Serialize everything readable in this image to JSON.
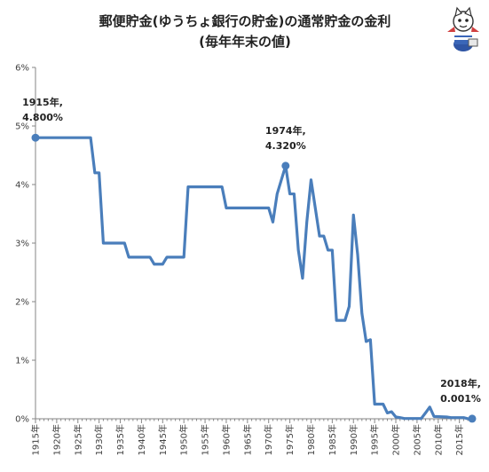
{
  "chart_data": {
    "type": "line",
    "title": "郵便貯金(ゆうちょ銀行の貯金)の通常貯金の金利",
    "subtitle": "(毎年年末の値)",
    "xlabel": "",
    "ylabel": "",
    "xlim": [
      1915,
      2018
    ],
    "ylim": [
      0,
      6
    ],
    "grid": false,
    "legend": "none",
    "line_color": "#4a7ebb",
    "y_ticks": [
      "0%",
      "1%",
      "2%",
      "3%",
      "4%",
      "5%",
      "6%"
    ],
    "x_ticks": [
      "1915年",
      "1920年",
      "1925年",
      "1930年",
      "1935年",
      "1940年",
      "1945年",
      "1950年",
      "1955年",
      "1960年",
      "1965年",
      "1970年",
      "1975年",
      "1980年",
      "1985年",
      "1990年",
      "1995年",
      "2000年",
      "2005年",
      "2010年",
      "2015年"
    ],
    "series": [
      {
        "x": [
          1915,
          1928,
          1929,
          1930,
          1931,
          1936,
          1937,
          1942,
          1943,
          1945,
          1946,
          1950,
          1951,
          1959,
          1960,
          1970,
          1971,
          1972,
          1973,
          1974,
          1975,
          1976,
          1977,
          1978,
          1979,
          1980,
          1981,
          1982,
          1983,
          1984,
          1985,
          1986,
          1987,
          1988,
          1989,
          1990,
          1991,
          1992,
          1993,
          1994,
          1995,
          1996,
          1997,
          1998,
          1999,
          2000,
          2001,
          2002,
          2006,
          2007,
          2008,
          2009,
          2012,
          2013,
          2016,
          2017,
          2018
        ],
        "y": [
          4.8,
          4.8,
          4.2,
          4.2,
          3.0,
          3.0,
          2.76,
          2.76,
          2.64,
          2.64,
          2.76,
          2.76,
          3.96,
          3.96,
          3.6,
          3.6,
          3.36,
          3.84,
          4.08,
          4.32,
          3.84,
          3.84,
          2.88,
          2.4,
          3.36,
          4.08,
          3.6,
          3.12,
          3.12,
          2.88,
          2.88,
          1.68,
          1.68,
          1.68,
          1.92,
          3.48,
          2.8,
          1.8,
          1.32,
          1.35,
          0.25,
          0.25,
          0.25,
          0.1,
          0.12,
          0.03,
          0.02,
          0.005,
          0.005,
          0.1,
          0.2,
          0.04,
          0.03,
          0.02,
          0.02,
          0.001,
          0.001
        ]
      }
    ],
    "highlights": [
      {
        "year_label": "1915年,",
        "value_label": "4.800%",
        "x": 1915,
        "y": 4.8
      },
      {
        "year_label": "1974年,",
        "value_label": "4.320%",
        "x": 1974,
        "y": 4.32
      },
      {
        "year_label": "2018年,",
        "value_label": "0.001%",
        "x": 2018,
        "y": 0.001
      }
    ]
  }
}
